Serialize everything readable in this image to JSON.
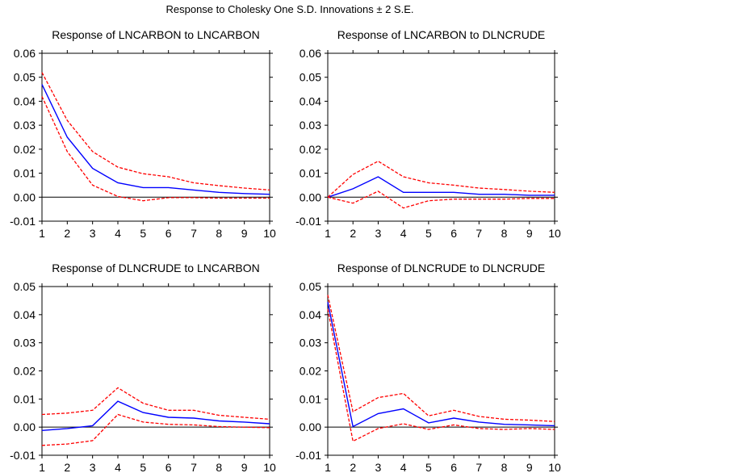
{
  "title": "Response to Cholesky One S.D. Innovations ± 2 S.E.",
  "colors": {
    "response": "#0000ff",
    "band": "#ff0000",
    "axis": "#000000",
    "zero": "#000000"
  },
  "chart_data": [
    {
      "type": "line",
      "title": "Response of LNCARBON to LNCARBON",
      "x": [
        1,
        2,
        3,
        4,
        5,
        6,
        7,
        8,
        9,
        10
      ],
      "xlim": [
        1,
        10
      ],
      "ylim": [
        -0.01,
        0.06
      ],
      "yticks": [
        -0.01,
        0.0,
        0.01,
        0.02,
        0.03,
        0.04,
        0.05,
        0.06
      ],
      "ytick_labels": [
        "-0.01",
        "0.00",
        "0.01",
        "0.02",
        "0.03",
        "0.04",
        "0.05",
        "0.06"
      ],
      "series": [
        {
          "role": "response",
          "style": "solid",
          "values": [
            0.047,
            0.025,
            0.012,
            0.006,
            0.004,
            0.004,
            0.003,
            0.002,
            0.0015,
            0.0012
          ]
        },
        {
          "role": "upper",
          "style": "dashed",
          "values": [
            0.052,
            0.032,
            0.019,
            0.0125,
            0.0098,
            0.0085,
            0.006,
            0.0048,
            0.0038,
            0.003
          ]
        },
        {
          "role": "lower",
          "style": "dashed",
          "values": [
            0.042,
            0.019,
            0.005,
            0.0003,
            -0.0015,
            -0.0002,
            -0.0002,
            -0.0004,
            -0.0004,
            -0.0004
          ]
        }
      ]
    },
    {
      "type": "line",
      "title": "Response of LNCARBON to DLNCRUDE",
      "x": [
        1,
        2,
        3,
        4,
        5,
        6,
        7,
        8,
        9,
        10
      ],
      "xlim": [
        1,
        10
      ],
      "ylim": [
        -0.01,
        0.06
      ],
      "yticks": [
        -0.01,
        0.0,
        0.01,
        0.02,
        0.03,
        0.04,
        0.05,
        0.06
      ],
      "ytick_labels": [
        "-0.01",
        "0.00",
        "0.01",
        "0.02",
        "0.03",
        "0.04",
        "0.05",
        "0.06"
      ],
      "series": [
        {
          "role": "response",
          "style": "solid",
          "values": [
            0.0,
            0.0035,
            0.0085,
            0.002,
            0.002,
            0.002,
            0.0012,
            0.0012,
            0.0008,
            0.0008
          ]
        },
        {
          "role": "upper",
          "style": "dashed",
          "values": [
            0.0,
            0.0095,
            0.015,
            0.0085,
            0.006,
            0.005,
            0.0038,
            0.0032,
            0.0025,
            0.002
          ]
        },
        {
          "role": "lower",
          "style": "dashed",
          "values": [
            0.0,
            -0.0025,
            0.0025,
            -0.0045,
            -0.0015,
            -0.0008,
            -0.0008,
            -0.0008,
            -0.0005,
            -0.0005
          ]
        }
      ]
    },
    {
      "type": "line",
      "title": "Response of DLNCRUDE to LNCARBON",
      "x": [
        1,
        2,
        3,
        4,
        5,
        6,
        7,
        8,
        9,
        10
      ],
      "xlim": [
        1,
        10
      ],
      "ylim": [
        -0.01,
        0.05
      ],
      "yticks": [
        -0.01,
        0.0,
        0.01,
        0.02,
        0.03,
        0.04,
        0.05
      ],
      "ytick_labels": [
        "-0.01",
        "0.00",
        "0.01",
        "0.02",
        "0.03",
        "0.04",
        "0.05"
      ],
      "series": [
        {
          "role": "response",
          "style": "solid",
          "values": [
            -0.0012,
            -0.0005,
            0.0005,
            0.0092,
            0.0052,
            0.0035,
            0.0032,
            0.0022,
            0.0018,
            0.0012
          ]
        },
        {
          "role": "upper",
          "style": "dashed",
          "values": [
            0.0045,
            0.005,
            0.006,
            0.014,
            0.0085,
            0.006,
            0.006,
            0.0042,
            0.0035,
            0.0028
          ]
        },
        {
          "role": "lower",
          "style": "dashed",
          "values": [
            -0.0065,
            -0.006,
            -0.0048,
            0.0045,
            0.0018,
            0.001,
            0.0008,
            0.0002,
            0.0,
            -0.0002
          ]
        }
      ]
    },
    {
      "type": "line",
      "title": "Response of DLNCRUDE to DLNCRUDE",
      "x": [
        1,
        2,
        3,
        4,
        5,
        6,
        7,
        8,
        9,
        10
      ],
      "xlim": [
        1,
        10
      ],
      "ylim": [
        -0.01,
        0.05
      ],
      "yticks": [
        -0.01,
        0.0,
        0.01,
        0.02,
        0.03,
        0.04,
        0.05
      ],
      "ytick_labels": [
        "-0.01",
        "0.00",
        "0.01",
        "0.02",
        "0.03",
        "0.04",
        "0.05"
      ],
      "series": [
        {
          "role": "response",
          "style": "solid",
          "values": [
            0.0445,
            0.0002,
            0.0048,
            0.0065,
            0.0015,
            0.0032,
            0.0018,
            0.001,
            0.0008,
            0.0005
          ]
        },
        {
          "role": "upper",
          "style": "dashed",
          "values": [
            0.047,
            0.0055,
            0.0105,
            0.012,
            0.004,
            0.006,
            0.0038,
            0.0028,
            0.0025,
            0.002
          ]
        },
        {
          "role": "lower",
          "style": "dashed",
          "values": [
            0.042,
            -0.005,
            -0.0005,
            0.0012,
            -0.0008,
            0.0008,
            -0.0005,
            -0.0008,
            -0.0005,
            -0.0008
          ]
        }
      ]
    }
  ]
}
